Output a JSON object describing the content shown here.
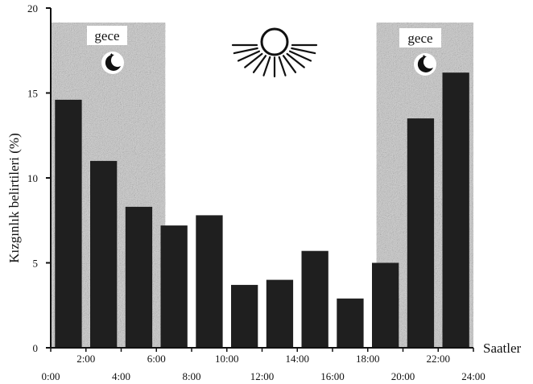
{
  "chart_data": {
    "type": "bar",
    "title": "",
    "xlabel": "Saatler",
    "ylabel": "Kızgınlık belirtileri (%)",
    "ylim": [
      0,
      20
    ],
    "yticks": [
      "0",
      "5",
      "10",
      "15",
      "20"
    ],
    "xticks_upper": [
      "2:00",
      "6:00",
      "10:00",
      "14:00",
      "18:00",
      "22:00"
    ],
    "xticks_lower": [
      "0:00",
      "4:00",
      "8:00",
      "12:00",
      "16:00",
      "20:00",
      "24:00"
    ],
    "categories": [
      "0:00-2:00",
      "2:00-4:00",
      "4:00-6:00",
      "6:00-8:00",
      "8:00-10:00",
      "10:00-12:00",
      "12:00-14:00",
      "14:00-16:00",
      "16:00-18:00",
      "18:00-20:00",
      "20:00-22:00",
      "22:00-24:00"
    ],
    "values": [
      14.6,
      11.0,
      8.3,
      7.2,
      7.8,
      3.7,
      4.0,
      5.7,
      2.9,
      5.0,
      13.5,
      16.2
    ],
    "night_label": "gece",
    "night_periods": [
      [
        0,
        6.5
      ],
      [
        18.5,
        24
      ]
    ],
    "colors": {
      "bar": "#1f1f1f",
      "night_shading": "#8a8a8a"
    },
    "icons": [
      "moon-stars-icon",
      "sun-icon"
    ]
  }
}
